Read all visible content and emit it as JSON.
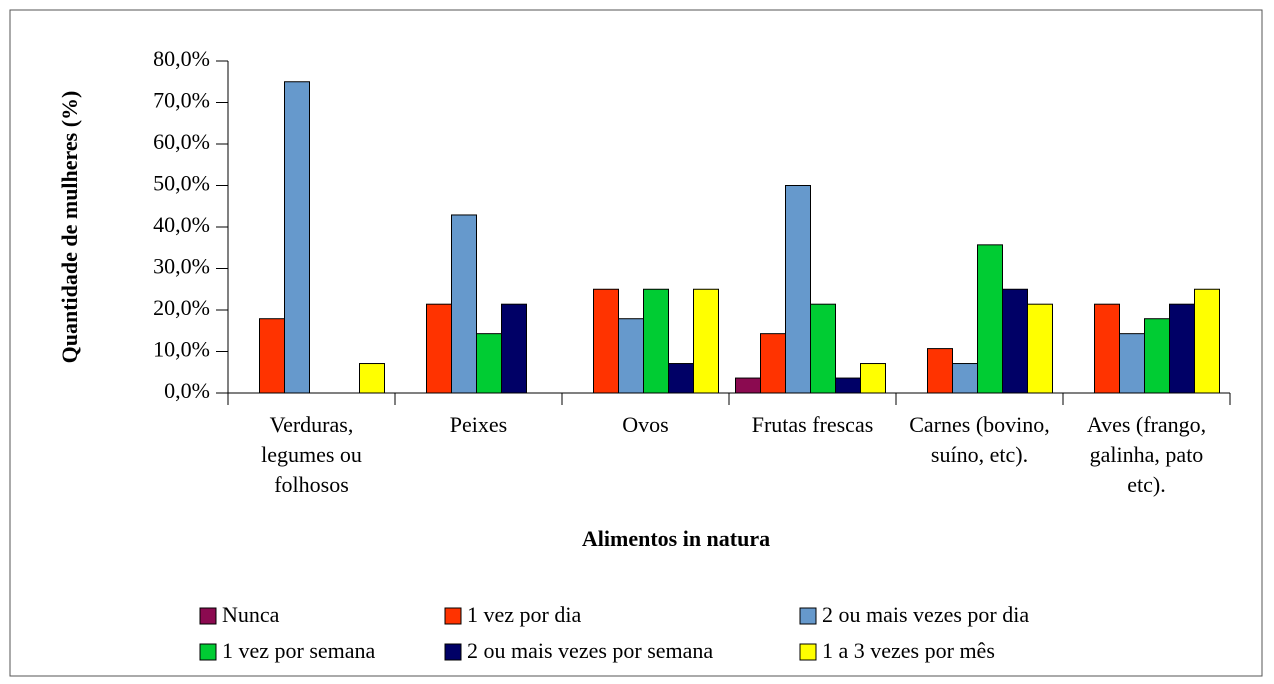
{
  "chart_data": {
    "type": "bar",
    "xlabel": "Alimentos in natura",
    "ylabel": "Quantidade de mulheres (%)",
    "categories": [
      "Verduras, legumes ou folhosos",
      "Peixes",
      "Ovos",
      "Frutas frescas",
      "Carnes (bovino, suíno, etc).",
      "Aves (frango, galinha, pato etc)."
    ],
    "series": [
      {
        "name": "Nunca",
        "color": "#8b0a50",
        "values": [
          0,
          0,
          0,
          3.6,
          0,
          0
        ]
      },
      {
        "name": "1 vez por dia",
        "color": "#ff3300",
        "values": [
          17.9,
          21.4,
          25,
          14.3,
          10.7,
          21.4
        ]
      },
      {
        "name": "2 ou mais vezes por dia",
        "color": "#6699cc",
        "values": [
          75,
          42.9,
          17.9,
          50,
          7.1,
          14.3
        ]
      },
      {
        "name": "1 vez por semana",
        "color": "#00cc33",
        "values": [
          0,
          14.3,
          25,
          21.4,
          35.7,
          17.9
        ]
      },
      {
        "name": "2 ou mais vezes por semana",
        "color": "#000066",
        "values": [
          0,
          21.4,
          7.1,
          3.6,
          25,
          21.4
        ]
      },
      {
        "name": "1 a 3 vezes por mês",
        "color": "#ffff00",
        "values": [
          7.1,
          0,
          25,
          7.1,
          21.4,
          25
        ]
      }
    ],
    "ylim": [
      0,
      80
    ],
    "yticks": [
      {
        "value": 0,
        "label": "0,0%"
      },
      {
        "value": 10,
        "label": "10,0%"
      },
      {
        "value": 20,
        "label": "20,0%"
      },
      {
        "value": 30,
        "label": "30,0%"
      },
      {
        "value": 40,
        "label": "40,0%"
      },
      {
        "value": 50,
        "label": "50,0%"
      },
      {
        "value": 60,
        "label": "60,0%"
      },
      {
        "value": 70,
        "label": "70,0%"
      },
      {
        "value": 80,
        "label": "80,0%"
      }
    ],
    "legend": "bottom"
  }
}
